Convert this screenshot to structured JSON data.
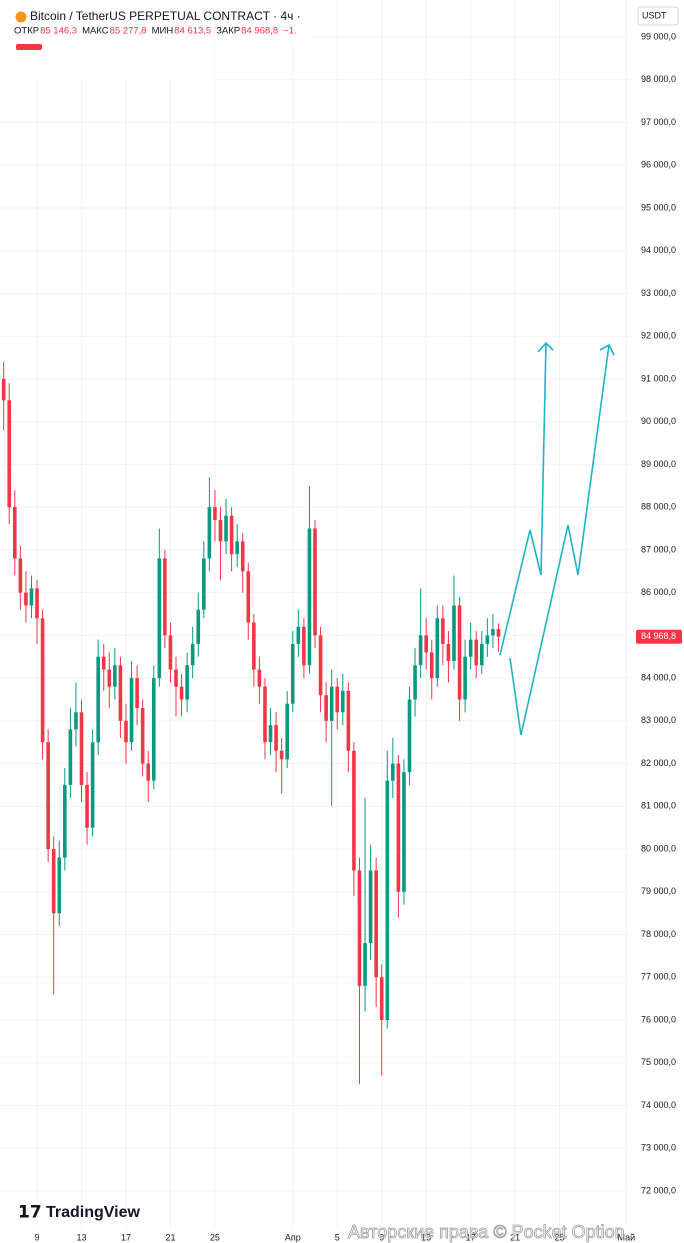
{
  "chart_data": {
    "type": "candlestick",
    "title": "Bitcoin / TetherUS PERPETUAL CONTRACT · 4ч · ",
    "header_fields": [
      {
        "label": "ОТКР",
        "value": "85 146,3"
      },
      {
        "label": "МАКС",
        "value": "85 277,8"
      },
      {
        "label": "МИН",
        "value": "84 613,5"
      },
      {
        "label": "ЗАКР",
        "value": "84 968,8"
      }
    ],
    "change": "−1.",
    "currency": "USDT",
    "brand": "TradingView",
    "watermark": "Авторские права © Pocket Option",
    "last_price": {
      "value": 84968.8,
      "label": "84 968,8"
    },
    "up_color": "#089981",
    "down_color": "#f23645",
    "grid": true,
    "xlim": [
      5.67,
      62.33
    ],
    "ylim": [
      71134,
      99866
    ],
    "xticks": [
      {
        "value": 9,
        "label": "9"
      },
      {
        "value": 13,
        "label": "13"
      },
      {
        "value": 17,
        "label": "17"
      },
      {
        "value": 21,
        "label": "21"
      },
      {
        "value": 25,
        "label": "25"
      },
      {
        "value": 32,
        "label": "Апр"
      },
      {
        "value": 36,
        "label": "5"
      },
      {
        "value": 40,
        "label": "9"
      },
      {
        "value": 44,
        "label": "13"
      },
      {
        "value": 48,
        "label": "17"
      },
      {
        "value": 52,
        "label": "21"
      },
      {
        "value": 56,
        "label": "25"
      },
      {
        "value": 62,
        "label": "Май"
      }
    ],
    "yticks": [
      {
        "value": 72000,
        "label": "72 000,0"
      },
      {
        "value": 73000,
        "label": "73 000,0"
      },
      {
        "value": 74000,
        "label": "74 000,0"
      },
      {
        "value": 75000,
        "label": "75 000,0"
      },
      {
        "value": 76000,
        "label": "76 000,0"
      },
      {
        "value": 77000,
        "label": "77 000,0"
      },
      {
        "value": 78000,
        "label": "78 000,0"
      },
      {
        "value": 79000,
        "label": "79 000,0"
      },
      {
        "value": 80000,
        "label": "80 000,0"
      },
      {
        "value": 81000,
        "label": "81 000,0"
      },
      {
        "value": 82000,
        "label": "82 000,0"
      },
      {
        "value": 83000,
        "label": "83 000,0"
      },
      {
        "value": 84000,
        "label": "84 000,0"
      },
      {
        "value": 85000,
        "label": "85 000,0"
      },
      {
        "value": 86000,
        "label": "86 000,0"
      },
      {
        "value": 87000,
        "label": "87 000,0"
      },
      {
        "value": 88000,
        "label": "88 000,0"
      },
      {
        "value": 89000,
        "label": "89 000,0"
      },
      {
        "value": 90000,
        "label": "90 000,0"
      },
      {
        "value": 91000,
        "label": "91 000,0"
      },
      {
        "value": 92000,
        "label": "92 000,0"
      },
      {
        "value": 93000,
        "label": "93 000,0"
      },
      {
        "value": 94000,
        "label": "94 000,0"
      },
      {
        "value": 95000,
        "label": "95 000,0"
      },
      {
        "value": 96000,
        "label": "96 000,0"
      },
      {
        "value": 97000,
        "label": "97 000,0"
      },
      {
        "value": 98000,
        "label": "98 000,0"
      },
      {
        "value": 99000,
        "label": "99 000,0"
      }
    ],
    "x": [
      6,
      6.5,
      7,
      7.5,
      8,
      8.5,
      9,
      9.5,
      10,
      10.5,
      11,
      11.5,
      12,
      12.5,
      13,
      13.5,
      14,
      14.5,
      15,
      15.5,
      16,
      16.5,
      17,
      17.5,
      18,
      18.5,
      19,
      19.5,
      20,
      20.5,
      21,
      21.5,
      22,
      22.5,
      23,
      23.5,
      24,
      24.5,
      25,
      25.5,
      26,
      26.5,
      27,
      27.5,
      28,
      28.5,
      29,
      29.5,
      30,
      30.5,
      31,
      31.5,
      32,
      32.5,
      33,
      33.5,
      34,
      34.5,
      35,
      35.5,
      36,
      36.5,
      37,
      37.5,
      38,
      38.5,
      39,
      39.5,
      40,
      40.5,
      41,
      41.5,
      42,
      42.5,
      43,
      43.5,
      44,
      44.5,
      45,
      45.5,
      46,
      46.5,
      47,
      47.5,
      48,
      48.5,
      49,
      49.5,
      50,
      50.5
    ],
    "open": [
      91000,
      90500,
      88000,
      86800,
      86000,
      85700,
      86100,
      85400,
      82500,
      80000,
      78500,
      79800,
      81500,
      82800,
      83200,
      81500,
      80500,
      82500,
      84500,
      84200,
      83800,
      84300,
      83000,
      82500,
      84000,
      83300,
      82000,
      81600,
      84000,
      86800,
      85000,
      84200,
      83800,
      83500,
      84300,
      84800,
      85600,
      86800,
      88000,
      87700,
      87200,
      87800,
      86900,
      87200,
      86500,
      85300,
      84200,
      83800,
      82500,
      82900,
      82300,
      82100,
      83400,
      84800,
      85200,
      84300,
      87500,
      85000,
      83600,
      83000,
      83800,
      83200,
      83700,
      82300,
      79500,
      76800,
      77800,
      79500,
      77000,
      76000,
      81600,
      82000,
      79000,
      81800,
      83500,
      84300,
      85000,
      84600,
      84000,
      85400,
      84800,
      84400,
      85700,
      83500,
      84500,
      84900,
      84300,
      84800,
      85000,
      85146.3
    ],
    "high": [
      91400,
      90900,
      88400,
      87100,
      86500,
      86400,
      86300,
      85600,
      82800,
      80300,
      80200,
      81900,
      83300,
      83900,
      83500,
      81800,
      82800,
      84900,
      84800,
      84600,
      84700,
      84500,
      83400,
      84400,
      84300,
      83500,
      82300,
      84300,
      87500,
      87000,
      85300,
      84500,
      84100,
      84600,
      85200,
      86000,
      87200,
      88700,
      88400,
      88000,
      88200,
      88000,
      87600,
      87400,
      86700,
      85500,
      84500,
      84000,
      83300,
      83200,
      82600,
      83700,
      85100,
      85600,
      85400,
      88500,
      87700,
      85200,
      83900,
      84200,
      84000,
      84100,
      83900,
      82500,
      79800,
      81200,
      80100,
      79800,
      77300,
      82300,
      82600,
      82200,
      82100,
      83800,
      84700,
      86100,
      85400,
      84900,
      85700,
      85700,
      85100,
      86400,
      85900,
      84900,
      85300,
      85100,
      85100,
      85400,
      85500,
      85277.8
    ],
    "low": [
      89800,
      87600,
      86400,
      85600,
      85300,
      85400,
      84800,
      82100,
      79700,
      76600,
      78200,
      79500,
      81200,
      82400,
      81100,
      80100,
      80300,
      82200,
      83700,
      83300,
      83500,
      82600,
      82000,
      82300,
      82900,
      81700,
      81100,
      81400,
      83800,
      84700,
      83900,
      83100,
      83100,
      83200,
      84000,
      84500,
      85400,
      86500,
      87200,
      86300,
      86900,
      86500,
      86600,
      86000,
      84900,
      83800,
      83400,
      82100,
      82200,
      81800,
      81300,
      81900,
      83200,
      84500,
      84000,
      84100,
      84700,
      83200,
      82500,
      81000,
      82800,
      82900,
      81800,
      78900,
      74500,
      76200,
      77400,
      76300,
      74700,
      75800,
      81200,
      78400,
      78700,
      81500,
      83100,
      84000,
      84200,
      83500,
      83800,
      84300,
      83900,
      84200,
      83000,
      83200,
      84200,
      84000,
      84100,
      84500,
      84700,
      84613.5
    ],
    "close": [
      90500,
      88000,
      86800,
      86000,
      85700,
      86100,
      85400,
      82500,
      80000,
      78500,
      79800,
      81500,
      82800,
      83200,
      81500,
      80500,
      82500,
      84500,
      84200,
      83800,
      84300,
      83000,
      82500,
      84000,
      83300,
      82000,
      81600,
      84000,
      86800,
      85000,
      84200,
      83800,
      83500,
      84300,
      84800,
      85600,
      86800,
      88000,
      87700,
      87200,
      87800,
      86900,
      87200,
      86500,
      85300,
      84200,
      83800,
      82500,
      82900,
      82300,
      82100,
      83400,
      84800,
      85200,
      84300,
      87500,
      85000,
      83600,
      83000,
      83800,
      83200,
      83700,
      82300,
      79500,
      76800,
      77800,
      79500,
      77000,
      76000,
      81600,
      82000,
      79000,
      81800,
      83500,
      84300,
      85000,
      84600,
      84000,
      85400,
      84800,
      84400,
      85700,
      83500,
      84500,
      84900,
      84300,
      84800,
      85000,
      85146.3,
      84968.8
    ]
  }
}
